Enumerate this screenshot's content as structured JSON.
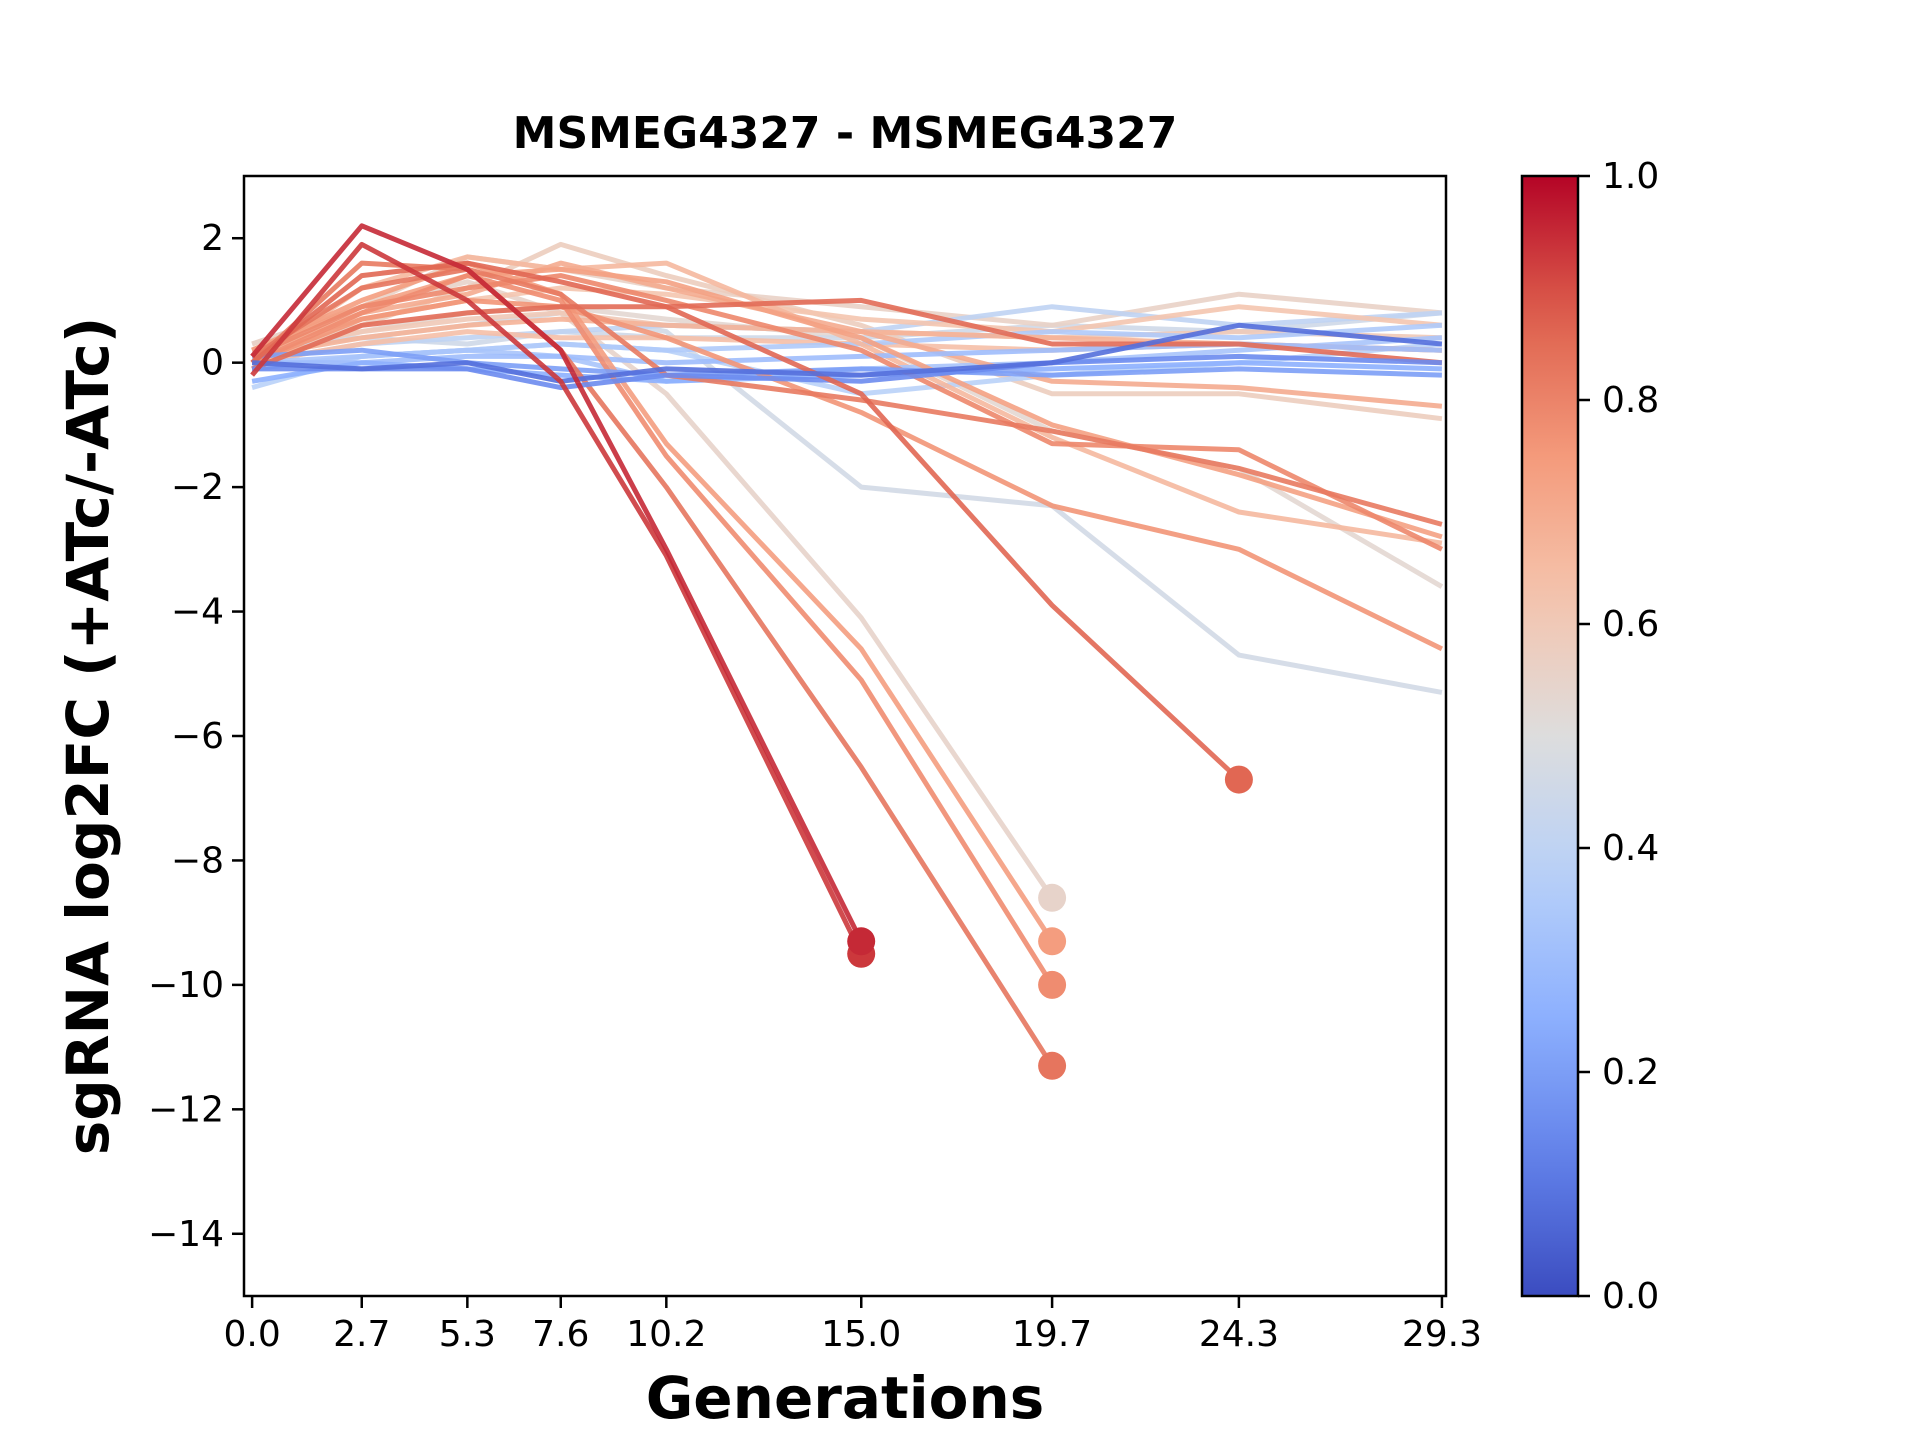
{
  "chart_data": {
    "type": "line",
    "title": "MSMEG4327 - MSMEG4327",
    "xlabel": "Generations",
    "ylabel": "sgRNA log2FC (+ATc/-ATc)",
    "x_ticks": [
      0.0,
      2.7,
      5.3,
      7.6,
      10.2,
      15.0,
      19.7,
      24.3,
      29.3
    ],
    "x_tick_labels": [
      "0.0",
      "2.7",
      "5.3",
      "7.6",
      "10.2",
      "15.0",
      "19.7",
      "24.3",
      "29.3"
    ],
    "xlim": [
      -0.2,
      29.4
    ],
    "ylim": [
      -15,
      3
    ],
    "y_ticks": [
      2,
      0,
      -2,
      -4,
      -6,
      -8,
      -10,
      -12,
      -14
    ],
    "y_tick_labels": [
      "2",
      "0",
      "−2",
      "−4",
      "−6",
      "−8",
      "−10",
      "−12",
      "−14"
    ],
    "colorbar": {
      "colormap": "coolwarm",
      "range": [
        0.0,
        1.0
      ],
      "tick_values": [
        0.0,
        0.2,
        0.4,
        0.6,
        0.8,
        1.0
      ],
      "tick_labels": [
        "0.0",
        "0.2",
        "0.4",
        "0.6",
        "0.8",
        "1.0"
      ]
    },
    "series": [
      {
        "c": 0.95,
        "x": [
          0,
          2.7,
          5.3,
          7.6,
          10.2,
          15.0
        ],
        "y": [
          0.1,
          2.2,
          1.5,
          0.2,
          -3.0,
          -9.3
        ],
        "end_marker": true
      },
      {
        "c": 0.93,
        "x": [
          0,
          2.7,
          5.3,
          7.6,
          10.2,
          15.0
        ],
        "y": [
          -0.2,
          1.9,
          1.0,
          -0.3,
          -3.1,
          -9.5
        ],
        "end_marker": true
      },
      {
        "c": 0.86,
        "x": [
          0,
          2.7,
          5.3,
          7.6,
          10.2,
          15.0,
          19.7,
          24.3
        ],
        "y": [
          0.0,
          1.4,
          1.6,
          1.3,
          0.9,
          -0.5,
          -3.9,
          -6.7
        ],
        "end_marker": true
      },
      {
        "c": 0.83,
        "x": [
          0,
          2.7,
          5.3,
          7.6,
          10.2,
          15.0,
          19.7
        ],
        "y": [
          0.1,
          1.2,
          1.5,
          0.2,
          -2.0,
          -6.5,
          -11.3
        ],
        "end_marker": true
      },
      {
        "c": 0.78,
        "x": [
          0,
          2.7,
          5.3,
          7.6,
          10.2,
          15.0,
          19.7
        ],
        "y": [
          0.0,
          0.8,
          1.4,
          1.0,
          -1.5,
          -5.1,
          -10.0
        ],
        "end_marker": true
      },
      {
        "c": 0.74,
        "x": [
          0,
          2.7,
          5.3,
          7.6,
          10.2,
          15.0,
          19.7
        ],
        "y": [
          0.2,
          1.0,
          1.6,
          1.1,
          -1.3,
          -4.6,
          -9.3
        ],
        "end_marker": true
      },
      {
        "c": 0.55,
        "x": [
          0,
          2.7,
          5.3,
          7.6,
          10.2,
          15.0,
          19.7
        ],
        "y": [
          0.3,
          0.9,
          1.3,
          0.8,
          -0.5,
          -4.1,
          -8.6
        ],
        "end_marker": true
      },
      {
        "c": 0.46,
        "x": [
          0,
          2.7,
          5.3,
          7.6,
          10.2,
          15.0,
          19.7,
          24.3,
          29.3
        ],
        "y": [
          0.2,
          0.4,
          0.6,
          0.8,
          0.5,
          -2.0,
          -2.3,
          -4.7,
          -5.3
        ]
      },
      {
        "c": 0.85,
        "x": [
          0,
          2.7,
          5.3,
          7.6,
          10.2,
          15.0,
          19.7,
          24.3,
          29.3
        ],
        "y": [
          -0.1,
          0.6,
          0.8,
          0.9,
          0.9,
          1.0,
          0.3,
          0.3,
          0.0
        ]
      },
      {
        "c": 0.82,
        "x": [
          0,
          2.7,
          5.3,
          7.6,
          10.2,
          15.0,
          19.7,
          24.3,
          29.3
        ],
        "y": [
          0.0,
          1.6,
          1.5,
          1.1,
          -0.2,
          -0.6,
          -1.1,
          -1.7,
          -2.6
        ]
      },
      {
        "c": 0.79,
        "x": [
          0,
          2.7,
          5.3,
          7.6,
          10.2,
          15.0,
          19.7,
          24.3,
          29.3
        ],
        "y": [
          0.1,
          0.9,
          1.2,
          1.4,
          1.0,
          0.2,
          -1.3,
          -1.4,
          -3.0
        ]
      },
      {
        "c": 0.76,
        "x": [
          0,
          2.7,
          5.3,
          7.6,
          10.2,
          15.0,
          19.7,
          24.3,
          29.3
        ],
        "y": [
          0.0,
          0.7,
          1.0,
          0.9,
          0.4,
          -0.8,
          -2.3,
          -3.0,
          -4.6
        ]
      },
      {
        "c": 0.73,
        "x": [
          0,
          2.7,
          5.3,
          7.6,
          10.2,
          15.0,
          19.7,
          24.3,
          29.3
        ],
        "y": [
          0.2,
          0.9,
          1.4,
          1.5,
          1.3,
          0.4,
          -1.0,
          -1.8,
          -2.8
        ]
      },
      {
        "c": 0.7,
        "x": [
          0,
          2.7,
          5.3,
          7.6,
          10.2,
          15.0,
          19.7,
          24.3,
          29.3
        ],
        "y": [
          0.1,
          0.8,
          1.1,
          1.6,
          1.2,
          0.5,
          -0.3,
          -0.4,
          -0.7
        ]
      },
      {
        "c": 0.66,
        "x": [
          0,
          2.7,
          5.3,
          7.6,
          10.2,
          15.0,
          19.7,
          24.3,
          29.3
        ],
        "y": [
          0.0,
          1.2,
          1.7,
          1.5,
          1.6,
          0.3,
          -1.2,
          -2.4,
          -2.9
        ]
      },
      {
        "c": 0.62,
        "x": [
          0,
          2.7,
          5.3,
          7.6,
          10.2,
          15.0,
          19.7,
          24.3,
          29.3
        ],
        "y": [
          0.2,
          0.7,
          1.0,
          1.2,
          1.1,
          0.7,
          0.5,
          0.9,
          0.6
        ]
      },
      {
        "c": 0.58,
        "x": [
          0,
          2.7,
          5.3,
          7.6,
          10.2,
          15.0,
          19.7,
          24.3,
          29.3
        ],
        "y": [
          0.1,
          0.6,
          1.2,
          1.9,
          1.4,
          0.6,
          -0.5,
          -0.5,
          -0.9
        ]
      },
      {
        "c": 0.56,
        "x": [
          0,
          2.7,
          5.3,
          7.6,
          10.2,
          15.0,
          19.7,
          24.3,
          29.3
        ],
        "y": [
          0.3,
          0.9,
          1.7,
          1.5,
          1.2,
          0.9,
          0.6,
          1.1,
          0.8
        ]
      },
      {
        "c": 0.53,
        "x": [
          0,
          2.7,
          5.3,
          7.6,
          10.2,
          15.0,
          19.7,
          24.3,
          29.3
        ],
        "y": [
          0.0,
          0.5,
          0.8,
          0.9,
          0.7,
          0.4,
          -1.1,
          -1.7,
          -3.6
        ]
      },
      {
        "c": 0.68,
        "x": [
          0,
          2.7,
          5.3,
          7.6,
          10.2,
          15.0,
          19.7,
          24.3,
          29.3
        ],
        "y": [
          0.1,
          0.4,
          0.6,
          0.7,
          0.6,
          0.5,
          0.4,
          0.3,
          0.2
        ]
      },
      {
        "c": 0.64,
        "x": [
          0,
          2.7,
          5.3,
          7.6,
          10.2,
          15.0,
          19.7,
          24.3,
          29.3
        ],
        "y": [
          0.0,
          0.3,
          0.5,
          0.4,
          0.4,
          0.3,
          0.2,
          0.3,
          0.2
        ]
      },
      {
        "c": 0.6,
        "x": [
          0,
          2.7,
          5.3,
          7.6,
          10.2,
          15.0,
          19.7,
          24.3,
          29.3
        ],
        "y": [
          0.2,
          0.5,
          0.7,
          0.8,
          0.6,
          0.5,
          0.4,
          0.5,
          0.4
        ]
      },
      {
        "c": 0.4,
        "x": [
          0,
          2.7,
          5.3,
          7.6,
          10.2,
          15.0,
          19.7,
          24.3,
          29.3
        ],
        "y": [
          0.0,
          0.3,
          0.4,
          0.5,
          0.6,
          0.5,
          0.9,
          0.6,
          0.8
        ]
      },
      {
        "c": 0.35,
        "x": [
          0,
          2.7,
          5.3,
          7.6,
          10.2,
          15.0,
          19.7,
          24.3,
          29.3
        ],
        "y": [
          -0.1,
          0.1,
          0.2,
          0.3,
          0.2,
          0.3,
          0.5,
          0.4,
          0.6
        ]
      },
      {
        "c": 0.3,
        "x": [
          0,
          2.7,
          5.3,
          7.6,
          10.2,
          15.0,
          19.7,
          24.3,
          29.3
        ],
        "y": [
          0.0,
          0.0,
          0.1,
          0.1,
          0.0,
          0.1,
          0.2,
          0.3,
          0.2
        ]
      },
      {
        "c": 0.25,
        "x": [
          0,
          2.7,
          5.3,
          7.6,
          10.2,
          15.0,
          19.7,
          24.3,
          29.3
        ],
        "y": [
          -0.3,
          0.0,
          -0.1,
          -0.2,
          -0.3,
          -0.2,
          -0.1,
          0.0,
          -0.1
        ]
      },
      {
        "c": 0.2,
        "x": [
          0,
          2.7,
          5.3,
          7.6,
          10.2,
          15.0,
          19.7,
          24.3,
          29.3
        ],
        "y": [
          0.1,
          0.2,
          0.0,
          -0.1,
          -0.2,
          -0.1,
          -0.2,
          -0.1,
          -0.2
        ]
      },
      {
        "c": 0.15,
        "x": [
          0,
          2.7,
          5.3,
          7.6,
          10.2,
          15.0,
          19.7,
          24.3,
          29.3
        ],
        "y": [
          -0.1,
          -0.1,
          -0.1,
          -0.4,
          -0.2,
          -0.3,
          0.0,
          0.1,
          0.0
        ]
      },
      {
        "c": 0.08,
        "x": [
          0,
          2.7,
          5.3,
          7.6,
          10.2,
          15.0,
          19.7,
          24.3,
          29.3
        ],
        "y": [
          0.0,
          -0.1,
          0.0,
          -0.3,
          -0.1,
          -0.2,
          0.0,
          0.6,
          0.3
        ]
      },
      {
        "c": 0.38,
        "x": [
          0,
          2.7,
          5.3,
          7.6,
          10.2,
          15.0,
          19.7,
          24.3,
          29.3
        ],
        "y": [
          -0.4,
          0.1,
          0.2,
          0.3,
          0.2,
          -0.5,
          -0.2,
          0.0,
          0.3
        ]
      },
      {
        "c": 0.33,
        "x": [
          0,
          2.7,
          5.3,
          7.6,
          10.2,
          15.0,
          19.7,
          24.3,
          29.3
        ],
        "y": [
          0.0,
          0.1,
          0.2,
          0.1,
          -0.3,
          -0.1,
          0.0,
          0.2,
          0.4
        ]
      },
      {
        "c": 0.45,
        "x": [
          0,
          2.7,
          5.3,
          7.6,
          10.2,
          15.0,
          19.7,
          24.3,
          29.3
        ],
        "y": [
          0.2,
          0.4,
          0.3,
          0.5,
          0.4,
          0.4,
          0.6,
          0.5,
          0.8
        ]
      }
    ]
  }
}
